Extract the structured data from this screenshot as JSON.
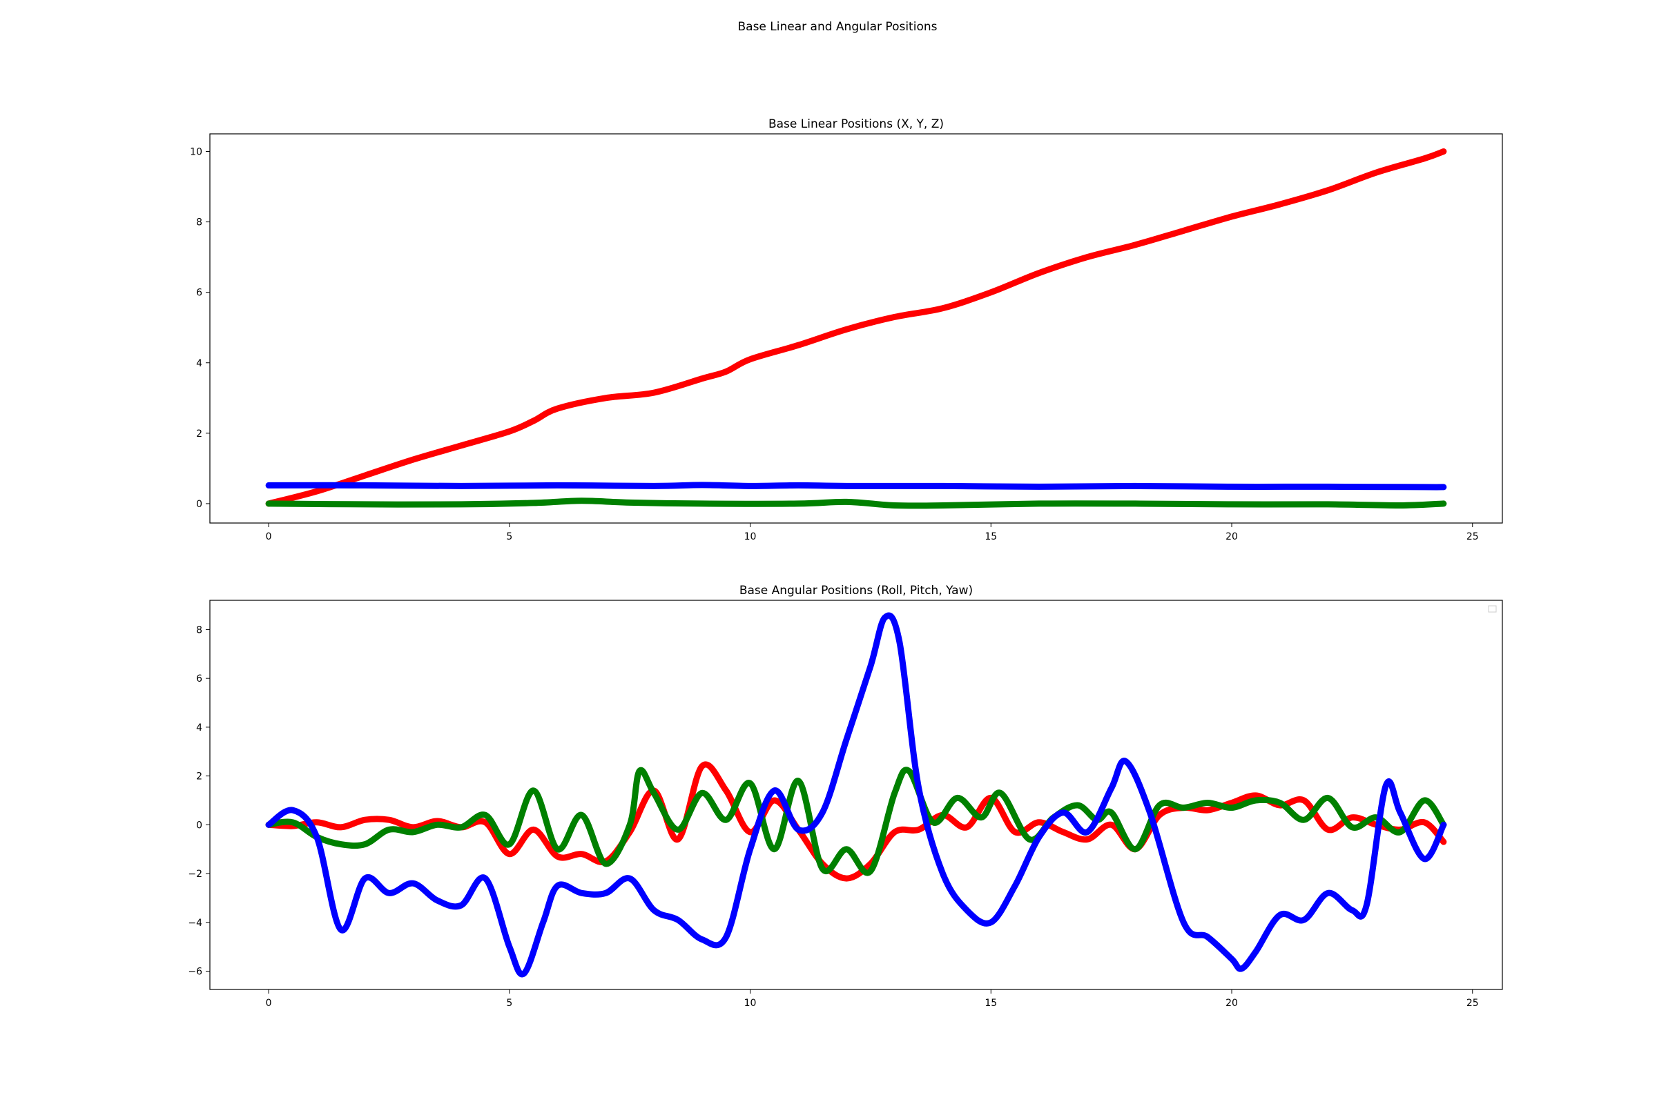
{
  "figure": {
    "suptitle": "Base Linear and Angular Positions"
  },
  "chart_data": [
    {
      "type": "line",
      "title": "Base Linear Positions (X, Y, Z)",
      "xlabel": "",
      "ylabel": "",
      "xlim": [
        -1.22,
        25.62
      ],
      "ylim": [
        -0.55,
        10.5
      ],
      "xticks": [
        0,
        5,
        10,
        15,
        20,
        25
      ],
      "yticks": [
        0,
        2,
        4,
        6,
        8,
        10
      ],
      "grid": false,
      "legend": "none",
      "marker": "*",
      "series": [
        {
          "color": "#ff0000",
          "points": [
            [
              0,
              0
            ],
            [
              1,
              0.35
            ],
            [
              2,
              0.8
            ],
            [
              3,
              1.25
            ],
            [
              4,
              1.65
            ],
            [
              5,
              2.05
            ],
            [
              5.5,
              2.35
            ],
            [
              6,
              2.7
            ],
            [
              7,
              3.0
            ],
            [
              8,
              3.15
            ],
            [
              9,
              3.55
            ],
            [
              9.5,
              3.75
            ],
            [
              10,
              4.1
            ],
            [
              11,
              4.5
            ],
            [
              12,
              4.95
            ],
            [
              13,
              5.3
            ],
            [
              14,
              5.55
            ],
            [
              15,
              6.0
            ],
            [
              16,
              6.55
            ],
            [
              17,
              7.0
            ],
            [
              18,
              7.35
            ],
            [
              19,
              7.75
            ],
            [
              20,
              8.15
            ],
            [
              21,
              8.5
            ],
            [
              22,
              8.9
            ],
            [
              23,
              9.4
            ],
            [
              24,
              9.8
            ],
            [
              24.4,
              10.0
            ]
          ]
        },
        {
          "color": "#0000ff",
          "points": [
            [
              0,
              0.52
            ],
            [
              2,
              0.52
            ],
            [
              4,
              0.5
            ],
            [
              6,
              0.52
            ],
            [
              8,
              0.5
            ],
            [
              9,
              0.53
            ],
            [
              10,
              0.5
            ],
            [
              11,
              0.52
            ],
            [
              12,
              0.5
            ],
            [
              14,
              0.5
            ],
            [
              16,
              0.48
            ],
            [
              18,
              0.5
            ],
            [
              20,
              0.48
            ],
            [
              22,
              0.48
            ],
            [
              24,
              0.47
            ],
            [
              24.4,
              0.47
            ]
          ]
        },
        {
          "color": "#008000",
          "points": [
            [
              0,
              0
            ],
            [
              2,
              -0.02
            ],
            [
              4,
              -0.02
            ],
            [
              5.5,
              0.02
            ],
            [
              6.5,
              0.08
            ],
            [
              7.5,
              0.03
            ],
            [
              9,
              0.0
            ],
            [
              11,
              0.0
            ],
            [
              12,
              0.05
            ],
            [
              13,
              -0.05
            ],
            [
              14,
              -0.05
            ],
            [
              16,
              0.0
            ],
            [
              18,
              0.0
            ],
            [
              20,
              -0.02
            ],
            [
              22,
              -0.02
            ],
            [
              23.5,
              -0.05
            ],
            [
              24.4,
              0.0
            ]
          ]
        }
      ]
    },
    {
      "type": "line",
      "title": "Base Angular Positions (Roll, Pitch, Yaw)",
      "xlabel": "",
      "ylabel": "",
      "xlim": [
        -1.22,
        25.62
      ],
      "ylim": [
        -6.75,
        9.2
      ],
      "xticks": [
        0,
        5,
        10,
        15,
        20,
        25
      ],
      "yticks": [
        -6,
        -4,
        -2,
        0,
        2,
        4,
        6,
        8
      ],
      "grid": false,
      "legend": "upper right (empty)",
      "marker": "*",
      "series": [
        {
          "color": "#ff0000",
          "points": [
            [
              0,
              0
            ],
            [
              0.5,
              -0.05
            ],
            [
              1,
              0.1
            ],
            [
              1.5,
              -0.1
            ],
            [
              2,
              0.2
            ],
            [
              2.5,
              0.2
            ],
            [
              3,
              -0.1
            ],
            [
              3.5,
              0.15
            ],
            [
              4,
              -0.1
            ],
            [
              4.5,
              0.1
            ],
            [
              5,
              -1.2
            ],
            [
              5.5,
              -0.2
            ],
            [
              6,
              -1.3
            ],
            [
              6.5,
              -1.2
            ],
            [
              7,
              -1.5
            ],
            [
              7.5,
              -0.3
            ],
            [
              8,
              1.4
            ],
            [
              8.5,
              -0.6
            ],
            [
              9,
              2.4
            ],
            [
              9.5,
              1.4
            ],
            [
              10,
              -0.3
            ],
            [
              10.5,
              1.0
            ],
            [
              11,
              -0.2
            ],
            [
              11.5,
              -1.6
            ],
            [
              12,
              -2.2
            ],
            [
              12.5,
              -1.6
            ],
            [
              13,
              -0.3
            ],
            [
              13.5,
              -0.2
            ],
            [
              14,
              0.4
            ],
            [
              14.5,
              -0.1
            ],
            [
              15,
              1.1
            ],
            [
              15.5,
              -0.3
            ],
            [
              16,
              0.1
            ],
            [
              16.5,
              -0.3
            ],
            [
              17,
              -0.6
            ],
            [
              17.5,
              0.0
            ],
            [
              18,
              -1.0
            ],
            [
              18.5,
              0.4
            ],
            [
              19,
              0.7
            ],
            [
              19.5,
              0.6
            ],
            [
              20,
              0.9
            ],
            [
              20.5,
              1.2
            ],
            [
              21,
              0.8
            ],
            [
              21.5,
              1.0
            ],
            [
              22,
              -0.2
            ],
            [
              22.5,
              0.3
            ],
            [
              23,
              0.0
            ],
            [
              23.5,
              -0.2
            ],
            [
              24,
              0.1
            ],
            [
              24.4,
              -0.7
            ]
          ]
        },
        {
          "color": "#008000",
          "points": [
            [
              0,
              0
            ],
            [
              0.5,
              0.1
            ],
            [
              1,
              -0.5
            ],
            [
              1.5,
              -0.8
            ],
            [
              2,
              -0.8
            ],
            [
              2.5,
              -0.2
            ],
            [
              3,
              -0.3
            ],
            [
              3.5,
              0.0
            ],
            [
              4,
              -0.1
            ],
            [
              4.5,
              0.4
            ],
            [
              5,
              -0.8
            ],
            [
              5.5,
              1.4
            ],
            [
              6,
              -1.0
            ],
            [
              6.5,
              0.4
            ],
            [
              7,
              -1.6
            ],
            [
              7.5,
              0.0
            ],
            [
              7.7,
              2.2
            ],
            [
              8,
              1.3
            ],
            [
              8.5,
              -0.2
            ],
            [
              9,
              1.3
            ],
            [
              9.5,
              0.2
            ],
            [
              10,
              1.7
            ],
            [
              10.5,
              -1.0
            ],
            [
              11,
              1.8
            ],
            [
              11.5,
              -1.8
            ],
            [
              12,
              -1.0
            ],
            [
              12.5,
              -1.9
            ],
            [
              13,
              1.3
            ],
            [
              13.3,
              2.2
            ],
            [
              13.8,
              0.1
            ],
            [
              14.3,
              1.1
            ],
            [
              14.8,
              0.3
            ],
            [
              15.2,
              1.3
            ],
            [
              15.8,
              -0.6
            ],
            [
              16.3,
              0.3
            ],
            [
              16.8,
              0.8
            ],
            [
              17.2,
              0.2
            ],
            [
              17.5,
              0.5
            ],
            [
              18,
              -1.0
            ],
            [
              18.5,
              0.8
            ],
            [
              19,
              0.7
            ],
            [
              19.5,
              0.9
            ],
            [
              20,
              0.7
            ],
            [
              20.5,
              1.0
            ],
            [
              21,
              0.9
            ],
            [
              21.5,
              0.2
            ],
            [
              22,
              1.1
            ],
            [
              22.5,
              -0.1
            ],
            [
              23,
              0.3
            ],
            [
              23.5,
              -0.3
            ],
            [
              24,
              1.0
            ],
            [
              24.4,
              0.0
            ]
          ]
        },
        {
          "color": "#0000ff",
          "points": [
            [
              0,
              0
            ],
            [
              0.5,
              0.6
            ],
            [
              1,
              -0.5
            ],
            [
              1.5,
              -4.3
            ],
            [
              2,
              -2.2
            ],
            [
              2.5,
              -2.8
            ],
            [
              3,
              -2.4
            ],
            [
              3.5,
              -3.1
            ],
            [
              4,
              -3.3
            ],
            [
              4.5,
              -2.2
            ],
            [
              5,
              -5.0
            ],
            [
              5.3,
              -6.1
            ],
            [
              5.7,
              -4.0
            ],
            [
              6,
              -2.5
            ],
            [
              6.5,
              -2.8
            ],
            [
              7,
              -2.8
            ],
            [
              7.5,
              -2.2
            ],
            [
              8,
              -3.5
            ],
            [
              8.5,
              -3.9
            ],
            [
              9,
              -4.7
            ],
            [
              9.5,
              -4.6
            ],
            [
              10,
              -1.0
            ],
            [
              10.5,
              1.4
            ],
            [
              11,
              -0.2
            ],
            [
              11.5,
              0.5
            ],
            [
              12,
              3.5
            ],
            [
              12.5,
              6.5
            ],
            [
              12.8,
              8.5
            ],
            [
              13.1,
              7.5
            ],
            [
              13.5,
              1.5
            ],
            [
              14,
              -2.0
            ],
            [
              14.5,
              -3.5
            ],
            [
              15,
              -4.0
            ],
            [
              15.5,
              -2.5
            ],
            [
              16,
              -0.5
            ],
            [
              16.5,
              0.5
            ],
            [
              17,
              -0.3
            ],
            [
              17.5,
              1.5
            ],
            [
              17.8,
              2.6
            ],
            [
              18.3,
              0.5
            ],
            [
              19,
              -4.0
            ],
            [
              19.5,
              -4.6
            ],
            [
              20,
              -5.5
            ],
            [
              20.2,
              -5.9
            ],
            [
              20.5,
              -5.2
            ],
            [
              21,
              -3.7
            ],
            [
              21.5,
              -3.9
            ],
            [
              22,
              -2.8
            ],
            [
              22.5,
              -3.5
            ],
            [
              22.8,
              -3.3
            ],
            [
              23.2,
              1.6
            ],
            [
              23.5,
              0.5
            ],
            [
              24,
              -1.4
            ],
            [
              24.4,
              0.0
            ]
          ]
        }
      ]
    }
  ]
}
